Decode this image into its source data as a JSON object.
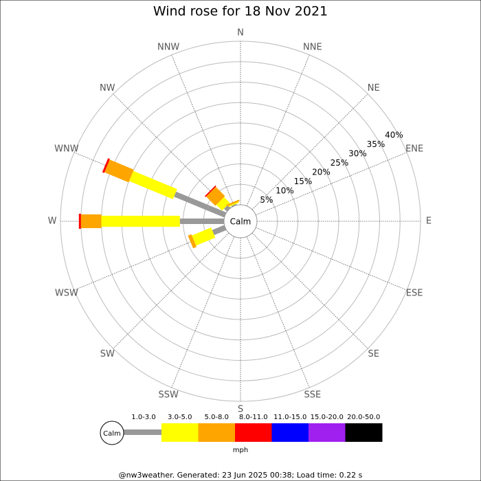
{
  "chart_data": {
    "type": "windrose",
    "title": "Wind rose for 18 Nov 2021",
    "categories": [
      "N",
      "NNE",
      "NE",
      "ENE",
      "E",
      "ESE",
      "SE",
      "SSE",
      "S",
      "SSW",
      "SW",
      "WSW",
      "W",
      "WNW",
      "NW",
      "NNW"
    ],
    "series": [
      {
        "name": "1.0-3.0",
        "color": "#999999",
        "values": [
          0,
          0,
          0,
          0,
          0,
          0,
          0,
          0,
          0,
          0,
          0,
          3.2,
          10.8,
          13.3,
          1,
          0.3
        ]
      },
      {
        "name": "3.0-5.0",
        "color": "#ffff00",
        "values": [
          0,
          0,
          0,
          0,
          0,
          0,
          0,
          0,
          0,
          0,
          0,
          5.1,
          19.2,
          11.6,
          2,
          0.3
        ]
      },
      {
        "name": "5.0-8.0",
        "color": "#ffa500",
        "values": [
          0,
          0,
          0,
          0,
          0,
          0,
          0,
          0,
          0,
          0,
          0,
          0.9,
          5,
          6.4,
          3.2,
          0.4
        ]
      },
      {
        "name": "8.0-11.0",
        "color": "#ff0000",
        "values": [
          0,
          0,
          0,
          0,
          0,
          0,
          0,
          0,
          0,
          0,
          0,
          0,
          0.5,
          0.5,
          0.3,
          0
        ]
      },
      {
        "name": "11.0-15.0",
        "color": "#0000ff",
        "values": [
          0,
          0,
          0,
          0,
          0,
          0,
          0,
          0,
          0,
          0,
          0,
          0,
          0,
          0,
          0,
          0
        ]
      },
      {
        "name": "15.0-20.0",
        "color": "#a020f0",
        "values": [
          0,
          0,
          0,
          0,
          0,
          0,
          0,
          0,
          0,
          0,
          0,
          0,
          0,
          0,
          0,
          0
        ]
      },
      {
        "name": "20.0-50.0",
        "color": "#000000",
        "values": [
          0,
          0,
          0,
          0,
          0,
          0,
          0,
          0,
          0,
          0,
          0,
          0,
          0,
          0,
          0,
          0
        ]
      }
    ],
    "rlim": [
      0,
      40
    ],
    "rticks": [
      {
        "value": 5,
        "label": "5%"
      },
      {
        "value": 10,
        "label": "10%"
      },
      {
        "value": 15,
        "label": "15%"
      },
      {
        "value": 20,
        "label": "20%"
      },
      {
        "value": 25,
        "label": "25%"
      },
      {
        "value": 30,
        "label": "30%"
      },
      {
        "value": 35,
        "label": "35%"
      },
      {
        "value": 40,
        "label": "40%"
      }
    ],
    "calm_label": "Calm",
    "units": "mph",
    "footer": "@nw3weather. Generated: 23 Jun 2025 00:38; Load time: 0.22 s"
  }
}
